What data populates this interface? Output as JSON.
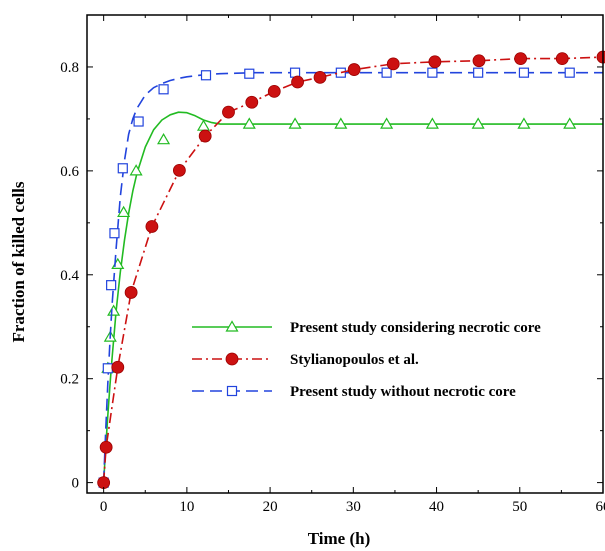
{
  "chart_data": {
    "type": "line",
    "title": "",
    "xlabel": "Time (h)",
    "ylabel": "Fraction of killed cells",
    "xlim": [
      -2,
      60
    ],
    "ylim": [
      -0.02,
      0.9
    ],
    "xticks": [
      0,
      10,
      20,
      30,
      40,
      50,
      60
    ],
    "yticks": [
      0,
      0.2,
      0.4,
      0.6,
      0.8
    ],
    "xtick_labels": [
      "0",
      "10",
      "20",
      "30",
      "40",
      "50",
      "60"
    ],
    "ytick_labels": [
      "0",
      "0.2",
      "0.4",
      "0.6",
      "0.8"
    ],
    "grid": false,
    "legend_position": "center-right",
    "series": [
      {
        "name": "Present study considering necrotic core",
        "color": "#22bb22",
        "line_style": "solid",
        "marker": "open-triangle",
        "x": [
          0,
          0.25,
          0.5,
          0.75,
          1,
          1.5,
          2,
          2.5,
          3,
          3.5,
          4,
          5,
          6,
          7,
          8,
          9,
          10,
          11,
          12,
          13,
          14,
          16,
          18,
          20,
          25,
          30,
          35,
          40,
          45,
          50,
          55,
          60
        ],
        "y": [
          0,
          0.067,
          0.129,
          0.186,
          0.238,
          0.33,
          0.405,
          0.467,
          0.518,
          0.561,
          0.595,
          0.646,
          0.679,
          0.698,
          0.708,
          0.713,
          0.712,
          0.706,
          0.698,
          0.693,
          0.69,
          0.69,
          0.69,
          0.69,
          0.69,
          0.69,
          0.69,
          0.69,
          0.69,
          0.69,
          0.69,
          0.69
        ],
        "marker_x": [
          0.5,
          0.8,
          1.2,
          1.7,
          2.4,
          3.9,
          7.2,
          12,
          17.5,
          23,
          28.5,
          34,
          39.5,
          45,
          50.5,
          56
        ],
        "marker_y": [
          0.22,
          0.28,
          0.33,
          0.42,
          0.52,
          0.6,
          0.66,
          0.686,
          0.69,
          0.69,
          0.69,
          0.69,
          0.69,
          0.69,
          0.69,
          0.69
        ]
      },
      {
        "name": "Stylianopoulos et al.",
        "color": "#cc1111",
        "line_style": "dash-dot",
        "marker": "filled-circle",
        "x": [
          0,
          0.3,
          1.7,
          3.3,
          5.8,
          9.1,
          12.2,
          15,
          17.8,
          20.5,
          23.3,
          26,
          30.1,
          34.8,
          39.8,
          45.1,
          50.1,
          55.1,
          60
        ],
        "y": [
          0,
          0.068,
          0.222,
          0.366,
          0.493,
          0.601,
          0.667,
          0.713,
          0.732,
          0.753,
          0.771,
          0.78,
          0.795,
          0.806,
          0.81,
          0.812,
          0.816,
          0.816,
          0.819
        ]
      },
      {
        "name": "Present study without necrotic core",
        "color": "#2244dd",
        "line_style": "dashed",
        "marker": "open-square",
        "x": [
          0,
          0.25,
          0.5,
          0.75,
          1,
          1.5,
          2,
          2.5,
          3,
          3.5,
          4,
          5,
          6,
          7,
          8,
          9,
          10,
          12,
          14,
          16,
          18,
          20,
          25,
          30,
          35,
          40,
          45,
          50,
          55,
          60
        ],
        "y": [
          0,
          0.1,
          0.19,
          0.27,
          0.34,
          0.45,
          0.55,
          0.62,
          0.67,
          0.7,
          0.72,
          0.746,
          0.76,
          0.768,
          0.774,
          0.778,
          0.781,
          0.785,
          0.787,
          0.788,
          0.789,
          0.789,
          0.789,
          0.789,
          0.789,
          0.789,
          0.789,
          0.789,
          0.789,
          0.789
        ],
        "marker_x": [
          0,
          0.5,
          0.9,
          1.3,
          2.3,
          4.2,
          7.2,
          12.3,
          17.5,
          23,
          28.5,
          34,
          39.5,
          45,
          50.5,
          56
        ],
        "marker_y": [
          0,
          0.22,
          0.38,
          0.48,
          0.605,
          0.695,
          0.757,
          0.784,
          0.787,
          0.789,
          0.789,
          0.789,
          0.789,
          0.789,
          0.789,
          0.789
        ]
      }
    ]
  }
}
